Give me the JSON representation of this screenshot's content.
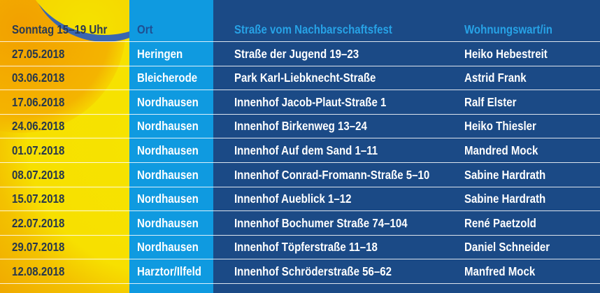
{
  "header": {
    "date": "Sonntag 15–19 Uhr",
    "place": "Ort",
    "street": "Straße vom Nachbarschaftsfest",
    "warden": "Wohnungswart/in"
  },
  "rows": [
    {
      "date": "27.05.2018",
      "place": "Heringen",
      "street": "Straße der Jugend 19–23",
      "warden": "Heiko Hebestreit"
    },
    {
      "date": "03.06.2018",
      "place": "Bleicherode",
      "street": "Park Karl-Liebknecht-Straße",
      "warden": "Astrid Frank"
    },
    {
      "date": "17.06.2018",
      "place": "Nordhausen",
      "street": "Innenhof Jacob-Plaut-Straße 1",
      "warden": "Ralf Elster"
    },
    {
      "date": "24.06.2018",
      "place": "Nordhausen",
      "street": "Innenhof Birkenweg 13–24",
      "warden": "Heiko Thiesler"
    },
    {
      "date": "01.07.2018",
      "place": "Nordhausen",
      "street": "Innenhof Auf dem Sand 1–11",
      "warden": "Mandred Mock"
    },
    {
      "date": "08.07.2018",
      "place": "Nordhausen",
      "street": "Innenhof Conrad-Fromann-Straße 5–10",
      "warden": "Sabine Hardrath"
    },
    {
      "date": "15.07.2018",
      "place": "Nordhausen",
      "street": "Innenhof Aueblick 1–12",
      "warden": "Sabine Hardrath"
    },
    {
      "date": "22.07.2018",
      "place": "Nordhausen",
      "street": "Innenhof Bochumer Straße 74–104",
      "warden": "René Paetzold"
    },
    {
      "date": "29.07.2018",
      "place": "Nordhausen",
      "street": "Innenhof Töpferstraße 11–18",
      "warden": "Daniel Schneider"
    },
    {
      "date": "12.08.2018",
      "place": "Harztor/Ilfeld",
      "street": "Innenhof Schröderstraße 56–62",
      "warden": "Manfred Mock"
    }
  ],
  "colors": {
    "date_bg": "#f5d800",
    "place_bg": "#0f9ae0",
    "street_bg": "#1b4a86"
  }
}
